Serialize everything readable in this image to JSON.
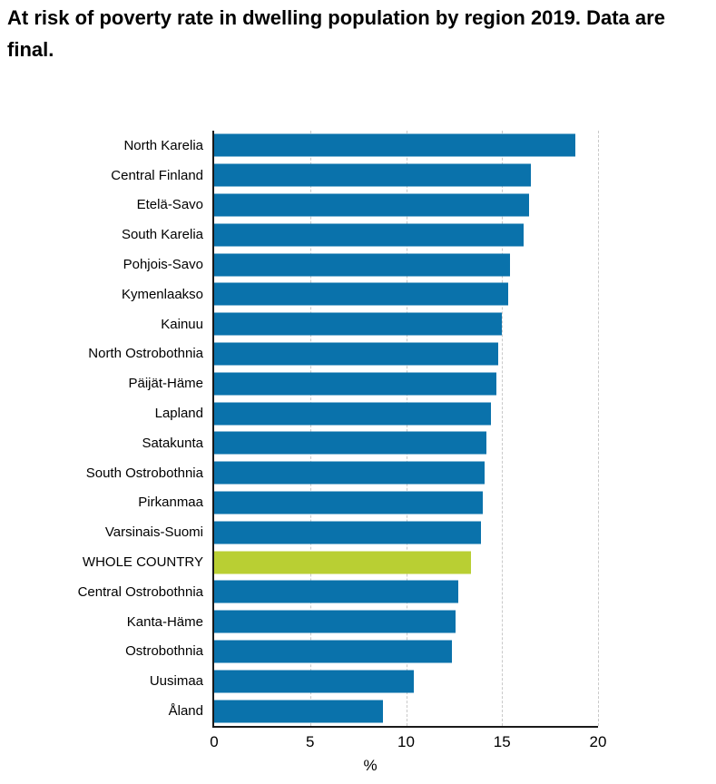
{
  "title": "At risk of poverty rate in dwelling population by region 2019. Data are final.",
  "chart_data": {
    "type": "bar",
    "orientation": "horizontal",
    "title": "At risk of poverty rate in dwelling population by region 2019. Data are final.",
    "xlabel": "%",
    "ylabel": "",
    "xlim": [
      0,
      20
    ],
    "xticks": [
      "0",
      "5",
      "10",
      "15",
      "20"
    ],
    "grid": "vertical-dashed",
    "legend": "none",
    "categories": [
      "North Karelia",
      "Central Finland",
      "Etelä-Savo",
      "South Karelia",
      "Pohjois-Savo",
      "Kymenlaakso",
      "Kainuu",
      "North Ostrobothnia",
      "Päijät-Häme",
      "Lapland",
      "Satakunta",
      "South Ostrobothnia",
      "Pirkanmaa",
      "Varsinais-Suomi",
      "WHOLE COUNTRY",
      "Central Ostrobothnia",
      "Kanta-Häme",
      "Ostrobothnia",
      "Uusimaa",
      "Åland"
    ],
    "values": [
      18.8,
      16.5,
      16.4,
      16.1,
      15.4,
      15.3,
      15.0,
      14.8,
      14.7,
      14.4,
      14.2,
      14.1,
      14.0,
      13.9,
      13.4,
      12.7,
      12.6,
      12.4,
      10.4,
      8.8
    ],
    "highlight_category": "WHOLE COUNTRY",
    "colors": {
      "bar": "#0a72ab",
      "highlight": "#b9cf33",
      "gridline": "#c9c9c9",
      "axis": "#1a1a1a",
      "text": "#000000"
    }
  }
}
